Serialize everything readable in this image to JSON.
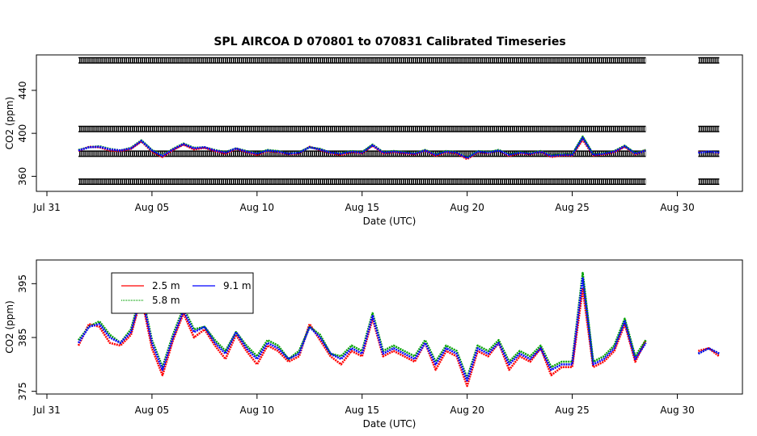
{
  "chart_data": [
    {
      "type": "line",
      "title": "SPL   AIRCOA  D   070801  to  070831   Calibrated Timeseries",
      "x_label": "Date (UTC)",
      "y_label": "CO2 (ppm)",
      "xlim": [
        -0.5,
        33.1
      ],
      "xticks": [
        {
          "value": 0,
          "label": "Jul 31"
        },
        {
          "value": 5,
          "label": "Aug 05"
        },
        {
          "value": 10,
          "label": "Aug 10"
        },
        {
          "value": 15,
          "label": "Aug 15"
        },
        {
          "value": 20,
          "label": "Aug 20"
        },
        {
          "value": 25,
          "label": "Aug 25"
        },
        {
          "value": 30,
          "label": "Aug 30"
        }
      ],
      "ylim": [
        346,
        473
      ],
      "yticks": [
        360,
        400,
        440
      ],
      "x": [
        1.5,
        2,
        2.5,
        3,
        3.5,
        4,
        4.5,
        5,
        5.5,
        6,
        6.5,
        7,
        7.5,
        8,
        8.5,
        9,
        9.5,
        10,
        10.5,
        11,
        11.5,
        12,
        12.5,
        13,
        13.5,
        14,
        14.5,
        15,
        15.5,
        16,
        16.5,
        17,
        17.5,
        18,
        18.5,
        19,
        19.5,
        20,
        20.5,
        21,
        21.5,
        22,
        22.5,
        23,
        23.5,
        24,
        24.5,
        25,
        25.5,
        26,
        26.5,
        27,
        27.5,
        28,
        28.5,
        30,
        31,
        31.5,
        32
      ],
      "series": [
        {
          "color": "#000000",
          "marker": "circle",
          "values": [
            468,
            468,
            468,
            468,
            468,
            468,
            468,
            468,
            468,
            468,
            468,
            468,
            468,
            468,
            468,
            468,
            468,
            468,
            468,
            468,
            468,
            468,
            468,
            468,
            468,
            468,
            468,
            468,
            468,
            468,
            468,
            468,
            468,
            468,
            468,
            468,
            468,
            468,
            468,
            468,
            468,
            468,
            468,
            468,
            468,
            468,
            468,
            468,
            468,
            468,
            468,
            468,
            468,
            468,
            468,
            null,
            468,
            468,
            468
          ]
        },
        {
          "color": "#000000",
          "marker": "circle",
          "values": [
            404,
            404,
            404,
            404,
            404,
            404,
            404,
            404,
            404,
            404,
            404,
            404,
            404,
            404,
            404,
            404,
            404,
            404,
            404,
            404,
            404,
            404,
            404,
            404,
            404,
            404,
            404,
            404,
            404,
            404,
            404,
            404,
            404,
            404,
            404,
            404,
            404,
            404,
            404,
            404,
            404,
            404,
            404,
            404,
            404,
            404,
            404,
            404,
            404,
            404,
            404,
            404,
            404,
            404,
            404,
            null,
            404,
            404,
            404
          ]
        },
        {
          "color": "#000000",
          "marker": "circle",
          "values": [
            381,
            381,
            381,
            381,
            381,
            381,
            381,
            381,
            381,
            381,
            381,
            381,
            381,
            381,
            381,
            381,
            381,
            381,
            381,
            381,
            381,
            381,
            381,
            381,
            381,
            381,
            381,
            381,
            381,
            381,
            381,
            381,
            381,
            381,
            381,
            381,
            381,
            381,
            381,
            381,
            381,
            381,
            381,
            381,
            381,
            381,
            381,
            381,
            381,
            381,
            381,
            381,
            381,
            381,
            381,
            null,
            381,
            381,
            381
          ]
        },
        {
          "color": "#000000",
          "marker": "circle",
          "values": [
            355,
            355,
            355,
            355,
            355,
            355,
            355,
            355,
            355,
            355,
            355,
            355,
            355,
            355,
            355,
            355,
            355,
            355,
            355,
            355,
            355,
            355,
            355,
            355,
            355,
            355,
            355,
            355,
            355,
            355,
            355,
            355,
            355,
            355,
            355,
            355,
            355,
            355,
            355,
            355,
            355,
            355,
            355,
            355,
            355,
            355,
            355,
            355,
            355,
            355,
            355,
            355,
            355,
            355,
            355,
            null,
            355,
            355,
            355
          ]
        },
        {
          "color": "#ff0000",
          "values": [
            383.5,
            387.5,
            387,
            384,
            383.5,
            385.5,
            392.5,
            383,
            378,
            384.5,
            389.5,
            385,
            386.5,
            383.5,
            381,
            385.5,
            382.5,
            380,
            383.5,
            382.5,
            380.5,
            381.5,
            387.5,
            384.5,
            381.5,
            380,
            382.5,
            381.5,
            388.5,
            381.5,
            382.5,
            381.5,
            380.5,
            384,
            379,
            382.5,
            381.5,
            376,
            382.5,
            381.5,
            384,
            379,
            381.5,
            380.5,
            383,
            378,
            379.5,
            379.5,
            394,
            379.5,
            380.5,
            382.5,
            387.5,
            380.5,
            384.5,
            null,
            382.5,
            383,
            381.5
          ]
        },
        {
          "color": "#00a000",
          "values": [
            384.5,
            387,
            388,
            385.5,
            384,
            386.5,
            393.5,
            384.5,
            379.5,
            385.5,
            390.5,
            386.5,
            387,
            384.5,
            382.5,
            386,
            383.5,
            381.5,
            384.5,
            383.5,
            381,
            382.5,
            387,
            385.5,
            382,
            381.5,
            383.5,
            382.5,
            389.5,
            382.5,
            383.5,
            382.5,
            381.5,
            384.5,
            380.5,
            383.5,
            382.5,
            377.5,
            383.5,
            382.5,
            384.5,
            380.5,
            382.5,
            381.5,
            383.5,
            379.5,
            380.5,
            380.5,
            397,
            380.5,
            381.5,
            383.5,
            388.5,
            381.5,
            384.5,
            null,
            382,
            383,
            382
          ]
        },
        {
          "color": "#0000ff",
          "values": [
            384,
            387,
            387.5,
            385,
            384,
            386,
            393,
            384,
            379,
            385,
            390,
            386,
            387,
            384,
            382,
            386,
            383,
            381,
            384,
            383,
            381,
            382,
            387,
            385,
            382,
            381,
            383,
            382,
            389,
            382,
            383,
            382,
            381,
            384,
            380,
            383,
            382,
            377,
            383,
            382,
            384,
            380,
            382,
            381,
            383,
            379,
            380,
            380,
            396,
            380,
            381,
            383,
            388,
            381,
            384,
            null,
            382,
            383,
            382
          ]
        }
      ]
    },
    {
      "type": "line",
      "x_label": "Date (UTC)",
      "y_label": "CO2 (ppm)",
      "xlim": [
        -0.5,
        33.1
      ],
      "xticks": [
        {
          "value": 0,
          "label": "Jul 31"
        },
        {
          "value": 5,
          "label": "Aug 05"
        },
        {
          "value": 10,
          "label": "Aug 10"
        },
        {
          "value": 15,
          "label": "Aug 15"
        },
        {
          "value": 20,
          "label": "Aug 20"
        },
        {
          "value": 25,
          "label": "Aug 25"
        },
        {
          "value": 30,
          "label": "Aug 30"
        }
      ],
      "ylim": [
        374.5,
        399.4
      ],
      "yticks": [
        375,
        385,
        395
      ],
      "legend": "top-left",
      "x": [
        1.5,
        2,
        2.5,
        3,
        3.5,
        4,
        4.5,
        5,
        5.5,
        6,
        6.5,
        7,
        7.5,
        8,
        8.5,
        9,
        9.5,
        10,
        10.5,
        11,
        11.5,
        12,
        12.5,
        13,
        13.5,
        14,
        14.5,
        15,
        15.5,
        16,
        16.5,
        17,
        17.5,
        18,
        18.5,
        19,
        19.5,
        20,
        20.5,
        21,
        21.5,
        22,
        22.5,
        23,
        23.5,
        24,
        24.5,
        25,
        25.5,
        26,
        26.5,
        27,
        27.5,
        28,
        28.5,
        30,
        31,
        31.5,
        32
      ],
      "series": [
        {
          "name": "2.5 m",
          "color": "#ff0000",
          "values": [
            383.5,
            387.5,
            387,
            384,
            383.5,
            385.5,
            392.5,
            383,
            378,
            384.5,
            389.5,
            385,
            386.5,
            383.5,
            381,
            385.5,
            382.5,
            380,
            383.5,
            382.5,
            380.5,
            381.5,
            387.5,
            384.5,
            381.5,
            380,
            382.5,
            381.5,
            388.5,
            381.5,
            382.5,
            381.5,
            380.5,
            384,
            379,
            382.5,
            381.5,
            376,
            382.5,
            381.5,
            384,
            379,
            381.5,
            380.5,
            383,
            378,
            379.5,
            379.5,
            394,
            379.5,
            380.5,
            382.5,
            387.5,
            380.5,
            384.5,
            null,
            382.5,
            383,
            381.5
          ]
        },
        {
          "name": "5.8 m",
          "color": "#00a000",
          "values": [
            384.5,
            387,
            388,
            385.5,
            384,
            386.5,
            393.5,
            384.5,
            379.5,
            385.5,
            390.5,
            386.5,
            387,
            384.5,
            382.5,
            386,
            383.5,
            381.5,
            384.5,
            383.5,
            381,
            382.5,
            387,
            385.5,
            382,
            381.5,
            383.5,
            382.5,
            389.5,
            382.5,
            383.5,
            382.5,
            381.5,
            384.5,
            380.5,
            383.5,
            382.5,
            377.5,
            383.5,
            382.5,
            384.5,
            380.5,
            382.5,
            381.5,
            383.5,
            379.5,
            380.5,
            380.5,
            397,
            380.5,
            381.5,
            383.5,
            388.5,
            381.5,
            384.5,
            null,
            382,
            383,
            382
          ]
        },
        {
          "name": "9.1 m",
          "color": "#0000ff",
          "values": [
            384,
            387,
            387.5,
            385,
            384,
            386,
            393,
            384,
            379,
            385,
            390,
            386,
            387,
            384,
            382,
            386,
            383,
            381,
            384,
            383,
            381,
            382,
            387,
            385,
            382,
            381,
            383,
            382,
            389,
            382,
            383,
            382,
            381,
            384,
            380,
            383,
            382,
            377,
            383,
            382,
            384,
            380,
            382,
            381,
            383,
            379,
            380,
            380,
            396,
            380,
            381,
            383,
            388,
            381,
            384,
            null,
            382,
            383,
            382
          ]
        }
      ]
    }
  ]
}
